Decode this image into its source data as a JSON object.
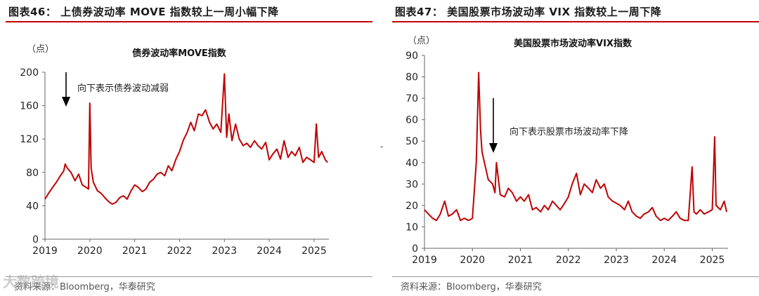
{
  "panels": [
    {
      "figure_title": "图表46：  上债券波动率 MOVE 指数较上一周小幅下降",
      "source": "资料来源：Bloomberg，华泰研究",
      "unit_label": "（点）",
      "annotation": "向下表示债券波动减弱"
    },
    {
      "figure_title": "图表47：  美国股票市场波动率 VIX 指数较上一周下降",
      "source": "资料来源：Bloomberg，华泰研究",
      "unit_label": "（点）",
      "annotation": "向下表示股票市场波动率下降"
    }
  ],
  "watermark": "大数跨境",
  "stray_mark": "-",
  "colors": {
    "series": "#c00000",
    "title_rule": "#c00000",
    "axis": "#666666"
  },
  "chart_data": [
    {
      "type": "line",
      "title": "债券波动率MOVE指数",
      "xlabel": "",
      "ylabel": "",
      "xticks": [
        "2019",
        "2020",
        "2021",
        "2022",
        "2023",
        "2024",
        "2025"
      ],
      "yticks": [
        0,
        40,
        80,
        120,
        160,
        200
      ],
      "ylim": [
        0,
        200
      ],
      "xlim": [
        2019.0,
        2025.33
      ],
      "grid": false,
      "series": [
        {
          "x": [
            2019.0,
            2019.08,
            2019.17,
            2019.25,
            2019.33,
            2019.42,
            2019.45,
            2019.5,
            2019.58,
            2019.67,
            2019.75,
            2019.83,
            2019.92,
            2019.97,
            2020.0,
            2020.03,
            2020.08,
            2020.17,
            2020.25,
            2020.33,
            2020.42,
            2020.5,
            2020.58,
            2020.67,
            2020.75,
            2020.83,
            2020.92,
            2021.0,
            2021.08,
            2021.17,
            2021.25,
            2021.33,
            2021.42,
            2021.5,
            2021.58,
            2021.67,
            2021.75,
            2021.83,
            2021.92,
            2022.0,
            2022.08,
            2022.17,
            2022.25,
            2022.33,
            2022.42,
            2022.5,
            2022.58,
            2022.67,
            2022.75,
            2022.83,
            2022.92,
            2023.0,
            2023.05,
            2023.1,
            2023.17,
            2023.25,
            2023.33,
            2023.42,
            2023.5,
            2023.58,
            2023.67,
            2023.75,
            2023.83,
            2023.92,
            2024.0,
            2024.08,
            2024.17,
            2024.25,
            2024.33,
            2024.42,
            2024.5,
            2024.58,
            2024.67,
            2024.75,
            2024.83,
            2024.92,
            2025.0,
            2025.05,
            2025.1,
            2025.17,
            2025.25,
            2025.3
          ],
          "y": [
            48,
            55,
            62,
            68,
            75,
            82,
            90,
            85,
            80,
            70,
            78,
            65,
            62,
            60,
            163,
            85,
            68,
            58,
            55,
            50,
            45,
            42,
            44,
            50,
            52,
            48,
            58,
            65,
            62,
            57,
            60,
            68,
            72,
            78,
            80,
            76,
            88,
            82,
            96,
            105,
            118,
            128,
            140,
            130,
            150,
            148,
            155,
            140,
            132,
            138,
            128,
            198,
            122,
            150,
            118,
            138,
            120,
            112,
            115,
            110,
            118,
            112,
            108,
            116,
            95,
            102,
            108,
            96,
            118,
            98,
            105,
            100,
            110,
            92,
            98,
            95,
            92,
            138,
            98,
            105,
            95,
            92
          ]
        }
      ]
    },
    {
      "type": "line",
      "title": "美国股票市场波动率VIX指数",
      "xlabel": "",
      "ylabel": "",
      "xticks": [
        "2019",
        "2020",
        "2021",
        "2022",
        "2023",
        "2024",
        "2025"
      ],
      "yticks": [
        0,
        10,
        20,
        30,
        40,
        50,
        60,
        70,
        80,
        90
      ],
      "ylim": [
        0,
        90
      ],
      "xlim": [
        2019.0,
        2025.33
      ],
      "grid": false,
      "series": [
        {
          "x": [
            2019.0,
            2019.08,
            2019.17,
            2019.25,
            2019.33,
            2019.42,
            2019.5,
            2019.58,
            2019.67,
            2019.75,
            2019.83,
            2019.92,
            2020.0,
            2020.08,
            2020.13,
            2020.17,
            2020.2,
            2020.25,
            2020.33,
            2020.42,
            2020.47,
            2020.5,
            2020.58,
            2020.67,
            2020.75,
            2020.83,
            2020.92,
            2021.0,
            2021.08,
            2021.17,
            2021.25,
            2021.33,
            2021.42,
            2021.5,
            2021.58,
            2021.67,
            2021.75,
            2021.83,
            2021.92,
            2022.0,
            2022.08,
            2022.17,
            2022.25,
            2022.33,
            2022.42,
            2022.5,
            2022.58,
            2022.67,
            2022.75,
            2022.83,
            2022.92,
            2023.0,
            2023.08,
            2023.17,
            2023.25,
            2023.33,
            2023.42,
            2023.5,
            2023.58,
            2023.67,
            2023.75,
            2023.83,
            2023.92,
            2024.0,
            2024.08,
            2024.17,
            2024.25,
            2024.33,
            2024.42,
            2024.5,
            2024.58,
            2024.62,
            2024.67,
            2024.75,
            2024.83,
            2024.92,
            2025.0,
            2025.05,
            2025.08,
            2025.17,
            2025.25,
            2025.3
          ],
          "y": [
            18,
            16,
            14,
            13,
            16,
            22,
            15,
            16,
            18,
            13,
            14,
            13,
            14,
            40,
            82,
            55,
            45,
            40,
            32,
            30,
            26,
            40,
            25,
            24,
            28,
            26,
            22,
            24,
            22,
            25,
            18,
            19,
            17,
            20,
            18,
            22,
            20,
            18,
            21,
            24,
            30,
            35,
            25,
            30,
            28,
            26,
            32,
            28,
            30,
            24,
            22,
            21,
            20,
            18,
            22,
            17,
            15,
            14,
            16,
            17,
            19,
            15,
            13,
            14,
            13,
            15,
            17,
            14,
            13,
            13,
            38,
            17,
            16,
            18,
            16,
            17,
            18,
            52,
            20,
            18,
            22,
            17
          ]
        }
      ]
    }
  ]
}
